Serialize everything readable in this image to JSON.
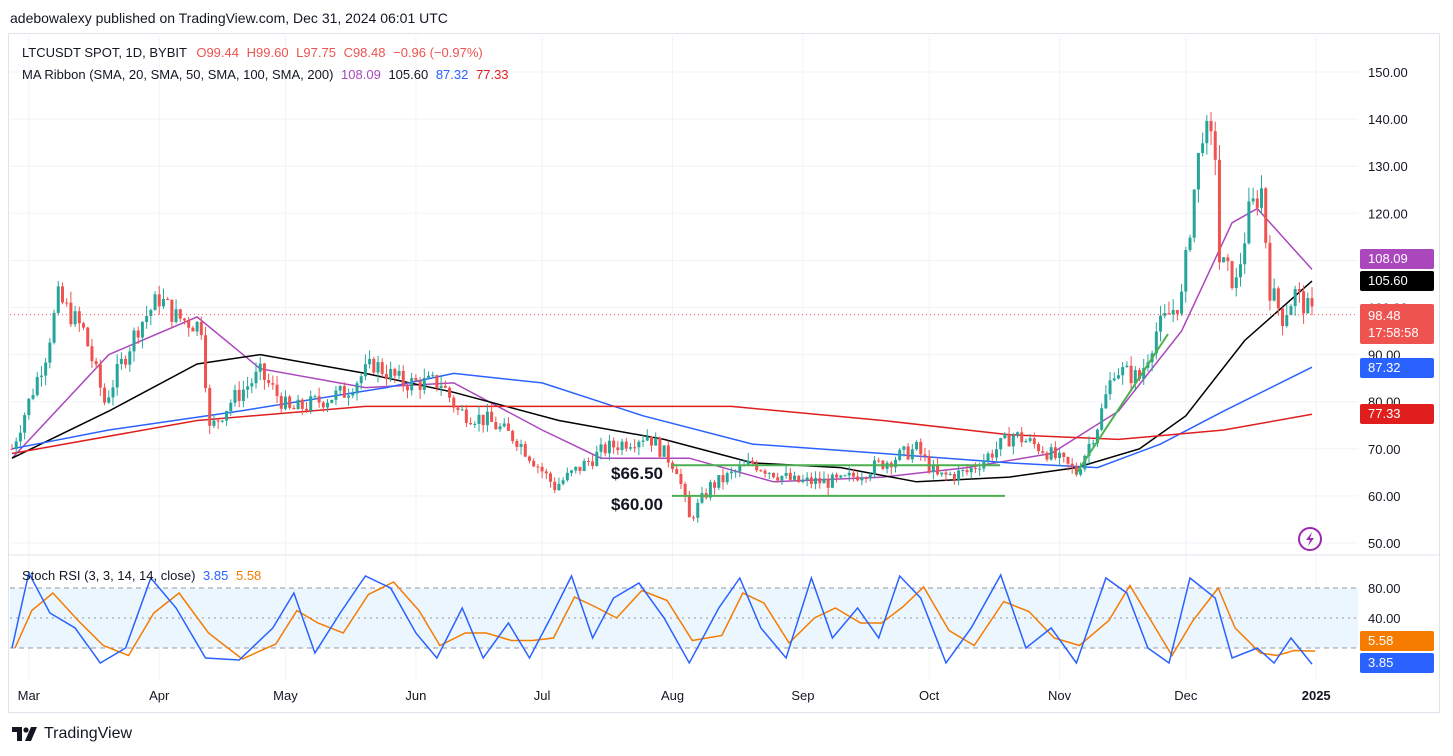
{
  "header": {
    "publisher": "adebowalexy published on TradingView.com, Dec 31, 2024 06:01 UTC"
  },
  "legend": {
    "symbol": "LTCUSDT SPOT, 1D, BYBIT",
    "open": "O99.44",
    "high": "H99.60",
    "low": "L97.75",
    "close": "C98.48",
    "change": "−0.96 (−0.97%)",
    "ma_label": "MA Ribbon (SMA, 20, SMA, 50, SMA, 100, SMA, 200)",
    "ma20": "108.09",
    "ma50": "105.60",
    "ma100": "87.32",
    "ma200": "77.33",
    "stoch_label": "Stoch RSI (3, 3, 14, 14, close)",
    "stoch_k": "3.85",
    "stoch_d": "5.58"
  },
  "price_badges": {
    "ma20": "108.09",
    "ma50": "105.60",
    "last": "98.48",
    "countdown": "17:58:58",
    "ma100": "87.32",
    "ma200": "77.33",
    "stoch_d": "5.58",
    "stoch_k": "3.85"
  },
  "colors": {
    "up": "#26a69a",
    "down": "#ef5350",
    "ma20": "#ab47bc",
    "ma50": "#000000",
    "ma100": "#2962ff",
    "ma200": "#e01e1e",
    "stoch_k": "#2962ff",
    "stoch_d": "#f57c00",
    "annotation": "#4caf50"
  },
  "annotations": {
    "level_1": "$66.50",
    "level_2": "$60.00"
  },
  "footer": {
    "brand": "TradingView"
  },
  "chart_data": [
    {
      "type": "candlestick",
      "title": "LTCUSDT SPOT, 1D, BYBIT",
      "x_ticks": [
        "Mar",
        "Apr",
        "May",
        "Jun",
        "Jul",
        "Aug",
        "Sep",
        "Oct",
        "Nov",
        "Dec",
        "2025"
      ],
      "y_ticks": [
        "50.00",
        "60.00",
        "70.00",
        "80.00",
        "90.00",
        "100.00",
        "110.00",
        "120.00",
        "130.00",
        "140.00",
        "150.00"
      ],
      "ylim": [
        48,
        155
      ],
      "last_price": 98.48,
      "horizontal_levels": [
        66.5,
        60.0
      ],
      "price_path": [
        [
          "2024-02-26",
          70
        ],
        [
          "2024-03-05",
          90
        ],
        [
          "2024-03-08",
          102
        ],
        [
          "2024-03-14",
          95
        ],
        [
          "2024-03-19",
          80
        ],
        [
          "2024-03-27",
          96
        ],
        [
          "2024-04-01",
          102
        ],
        [
          "2024-04-05",
          98
        ],
        [
          "2024-04-11",
          96
        ],
        [
          "2024-04-13",
          74
        ],
        [
          "2024-04-18",
          80
        ],
        [
          "2024-04-25",
          86
        ],
        [
          "2024-05-02",
          78
        ],
        [
          "2024-05-15",
          82
        ],
        [
          "2024-05-22",
          88
        ],
        [
          "2024-05-29",
          84
        ],
        [
          "2024-06-07",
          84
        ],
        [
          "2024-06-11",
          78
        ],
        [
          "2024-06-18",
          76
        ],
        [
          "2024-06-25",
          72
        ],
        [
          "2024-07-04",
          62
        ],
        [
          "2024-07-10",
          66
        ],
        [
          "2024-07-16",
          70
        ],
        [
          "2024-07-26",
          73
        ],
        [
          "2024-08-02",
          66
        ],
        [
          "2024-08-05",
          55
        ],
        [
          "2024-08-10",
          62
        ],
        [
          "2024-08-20",
          67
        ],
        [
          "2024-08-30",
          63
        ],
        [
          "2024-09-10",
          63
        ],
        [
          "2024-09-20",
          67
        ],
        [
          "2024-09-28",
          70
        ],
        [
          "2024-10-03",
          64
        ],
        [
          "2024-10-10",
          65
        ],
        [
          "2024-10-17",
          70
        ],
        [
          "2024-10-21",
          73
        ],
        [
          "2024-10-28",
          70
        ],
        [
          "2024-11-05",
          65
        ],
        [
          "2024-11-10",
          75
        ],
        [
          "2024-11-14",
          87
        ],
        [
          "2024-11-20",
          85
        ],
        [
          "2024-11-24",
          95
        ],
        [
          "2024-11-30",
          102
        ],
        [
          "2024-12-03",
          125
        ],
        [
          "2024-12-05",
          138
        ],
        [
          "2024-12-08",
          133
        ],
        [
          "2024-12-09",
          110
        ],
        [
          "2024-12-13",
          105
        ],
        [
          "2024-12-16",
          120
        ],
        [
          "2024-12-19",
          125
        ],
        [
          "2024-12-21",
          104
        ],
        [
          "2024-12-24",
          98
        ],
        [
          "2024-12-27",
          103
        ],
        [
          "2024-12-31",
          98.48
        ]
      ],
      "series": [
        {
          "name": "SMA 20",
          "last": 108.09,
          "values": [
            [
              "2024-02-26",
              68
            ],
            [
              "2024-03-20",
              90
            ],
            [
              "2024-04-10",
              98
            ],
            [
              "2024-04-25",
              87
            ],
            [
              "2024-05-20",
              83
            ],
            [
              "2024-06-10",
              84
            ],
            [
              "2024-07-01",
              74
            ],
            [
              "2024-07-15",
              68
            ],
            [
              "2024-08-05",
              68
            ],
            [
              "2024-08-25",
              63
            ],
            [
              "2024-09-20",
              64
            ],
            [
              "2024-10-10",
              66
            ],
            [
              "2024-10-30",
              69
            ],
            [
              "2024-11-15",
              78
            ],
            [
              "2024-11-30",
              95
            ],
            [
              "2024-12-12",
              118
            ],
            [
              "2024-12-18",
              121
            ],
            [
              "2024-12-31",
              108.09
            ]
          ]
        },
        {
          "name": "SMA 50",
          "last": 105.6,
          "values": [
            [
              "2024-02-26",
              68
            ],
            [
              "2024-03-20",
              78
            ],
            [
              "2024-04-10",
              88
            ],
            [
              "2024-04-25",
              90
            ],
            [
              "2024-05-20",
              86
            ],
            [
              "2024-06-10",
              82
            ],
            [
              "2024-07-05",
              76
            ],
            [
              "2024-07-30",
              72
            ],
            [
              "2024-08-20",
              67
            ],
            [
              "2024-09-10",
              66
            ],
            [
              "2024-09-28",
              63
            ],
            [
              "2024-10-20",
              64
            ],
            [
              "2024-11-05",
              66
            ],
            [
              "2024-11-20",
              70
            ],
            [
              "2024-12-01",
              77
            ],
            [
              "2024-12-15",
              93
            ],
            [
              "2024-12-31",
              105.6
            ]
          ]
        },
        {
          "name": "SMA 100",
          "last": 87.32,
          "values": [
            [
              "2024-02-26",
              70
            ],
            [
              "2024-03-20",
              74
            ],
            [
              "2024-04-20",
              78
            ],
            [
              "2024-05-25",
              83
            ],
            [
              "2024-06-10",
              86
            ],
            [
              "2024-07-01",
              84
            ],
            [
              "2024-07-25",
              77
            ],
            [
              "2024-08-20",
              71
            ],
            [
              "2024-09-20",
              69
            ],
            [
              "2024-10-20",
              67
            ],
            [
              "2024-11-10",
              66
            ],
            [
              "2024-11-25",
              71
            ],
            [
              "2024-12-10",
              78
            ],
            [
              "2024-12-31",
              87.32
            ]
          ]
        },
        {
          "name": "SMA 200",
          "last": 77.33,
          "values": [
            [
              "2024-02-26",
              69
            ],
            [
              "2024-04-10",
              76
            ],
            [
              "2024-05-20",
              79
            ],
            [
              "2024-07-01",
              79
            ],
            [
              "2024-08-15",
              79
            ],
            [
              "2024-09-20",
              76
            ],
            [
              "2024-10-20",
              73
            ],
            [
              "2024-11-15",
              72
            ],
            [
              "2024-12-10",
              74
            ],
            [
              "2024-12-31",
              77.33
            ]
          ]
        }
      ]
    },
    {
      "type": "line",
      "title": "Stoch RSI (3, 3, 14, 14, close)",
      "y_ticks": [
        "40.00",
        "80.00"
      ],
      "ylim": [
        -5,
        105
      ],
      "overbought": 80,
      "oversold": 20,
      "series": [
        {
          "name": "K",
          "last": 3.85
        },
        {
          "name": "D",
          "last": 5.58
        }
      ],
      "k_values": [
        [
          "2024-02-26",
          20
        ],
        [
          "2024-03-01",
          95
        ],
        [
          "2024-03-06",
          55
        ],
        [
          "2024-03-12",
          40
        ],
        [
          "2024-03-18",
          5
        ],
        [
          "2024-03-24",
          20
        ],
        [
          "2024-03-30",
          90
        ],
        [
          "2024-04-05",
          60
        ],
        [
          "2024-04-12",
          10
        ],
        [
          "2024-04-20",
          8
        ],
        [
          "2024-04-28",
          40
        ],
        [
          "2024-05-03",
          75
        ],
        [
          "2024-05-08",
          15
        ],
        [
          "2024-05-14",
          55
        ],
        [
          "2024-05-20",
          92
        ],
        [
          "2024-05-26",
          80
        ],
        [
          "2024-06-01",
          35
        ],
        [
          "2024-06-06",
          10
        ],
        [
          "2024-06-12",
          60
        ],
        [
          "2024-06-17",
          10
        ],
        [
          "2024-06-23",
          45
        ],
        [
          "2024-06-28",
          10
        ],
        [
          "2024-07-03",
          50
        ],
        [
          "2024-07-08",
          92
        ],
        [
          "2024-07-13",
          30
        ],
        [
          "2024-07-18",
          70
        ],
        [
          "2024-07-24",
          85
        ],
        [
          "2024-07-30",
          50
        ],
        [
          "2024-08-05",
          5
        ],
        [
          "2024-08-12",
          60
        ],
        [
          "2024-08-17",
          90
        ],
        [
          "2024-08-22",
          40
        ],
        [
          "2024-08-28",
          10
        ],
        [
          "2024-09-03",
          90
        ],
        [
          "2024-09-08",
          30
        ],
        [
          "2024-09-14",
          60
        ],
        [
          "2024-09-19",
          30
        ],
        [
          "2024-09-24",
          92
        ],
        [
          "2024-09-29",
          70
        ],
        [
          "2024-10-05",
          5
        ],
        [
          "2024-10-11",
          40
        ],
        [
          "2024-10-18",
          93
        ],
        [
          "2024-10-24",
          20
        ],
        [
          "2024-10-30",
          40
        ],
        [
          "2024-11-05",
          5
        ],
        [
          "2024-11-12",
          90
        ],
        [
          "2024-11-17",
          75
        ],
        [
          "2024-11-22",
          20
        ],
        [
          "2024-11-27",
          5
        ],
        [
          "2024-12-02",
          90
        ],
        [
          "2024-12-08",
          70
        ],
        [
          "2024-12-12",
          10
        ],
        [
          "2024-12-18",
          20
        ],
        [
          "2024-12-22",
          5
        ],
        [
          "2024-12-26",
          30
        ],
        [
          "2024-12-31",
          3.85
        ]
      ]
    }
  ]
}
